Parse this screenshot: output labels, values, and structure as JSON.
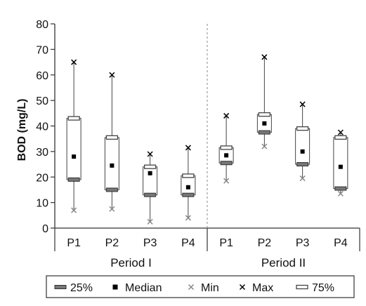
{
  "chart_data": {
    "type": "box",
    "ylabel": "BOD (mg/L)",
    "ylim": [
      0,
      80
    ],
    "yticks": [
      0,
      10,
      20,
      30,
      40,
      50,
      60,
      70,
      80
    ],
    "grid": false,
    "legend_position": "bottom",
    "groups": [
      {
        "label": "Period I",
        "categories": [
          "P1",
          "P2",
          "P3",
          "P4"
        ],
        "series": [
          {
            "category": "P1",
            "min": 7,
            "q1": 19,
            "median": 28,
            "q3": 43,
            "max": 65
          },
          {
            "category": "P2",
            "min": 7.5,
            "q1": 15,
            "median": 24.5,
            "q3": 35.5,
            "max": 60
          },
          {
            "category": "P3",
            "min": 2.5,
            "q1": 13,
            "median": 21.5,
            "q3": 24,
            "max": 29
          },
          {
            "category": "P4",
            "min": 4,
            "q1": 13,
            "median": 16,
            "q3": 20.5,
            "max": 31.5
          }
        ]
      },
      {
        "label": "Period II",
        "categories": [
          "P1",
          "P2",
          "P3",
          "P4"
        ],
        "series": [
          {
            "category": "P1",
            "min": 18.5,
            "q1": 25.5,
            "median": 28.5,
            "q3": 31.5,
            "max": 44
          },
          {
            "category": "P2",
            "min": 32,
            "q1": 37.5,
            "median": 41,
            "q3": 44.5,
            "max": 67
          },
          {
            "category": "P3",
            "min": 19.5,
            "q1": 25,
            "median": 30,
            "q3": 39,
            "max": 48.5
          },
          {
            "category": "P4",
            "min": 13.5,
            "q1": 15.5,
            "median": 24,
            "q3": 35.5,
            "max": 37.5
          }
        ]
      }
    ],
    "legend": [
      {
        "key": "q1",
        "label": "25%"
      },
      {
        "key": "median",
        "label": "Median"
      },
      {
        "key": "min",
        "label": "Min"
      },
      {
        "key": "max",
        "label": "Max"
      },
      {
        "key": "q3",
        "label": "75%"
      }
    ]
  }
}
